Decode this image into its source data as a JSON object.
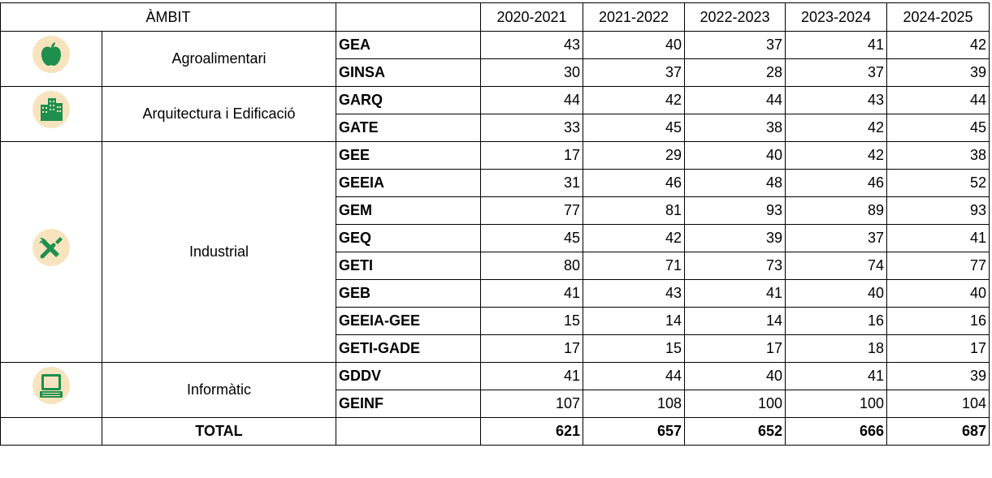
{
  "table": {
    "header": {
      "ambit": "ÀMBIT",
      "years": [
        "2020-2021",
        "2021-2022",
        "2022-2023",
        "2023-2024",
        "2024-2025"
      ]
    },
    "groups": [
      {
        "name": "Agroalimentari",
        "rows": [
          {
            "code": "GEA",
            "values": [
              43,
              40,
              37,
              41,
              42
            ]
          },
          {
            "code": "GINSA",
            "values": [
              30,
              37,
              28,
              37,
              39
            ]
          }
        ]
      },
      {
        "name": "Arquitectura i Edificació",
        "rows": [
          {
            "code": "GARQ",
            "values": [
              44,
              42,
              44,
              43,
              44
            ]
          },
          {
            "code": "GATE",
            "values": [
              33,
              45,
              38,
              42,
              45
            ]
          }
        ]
      },
      {
        "name": "Industrial",
        "rows": [
          {
            "code": "GEE",
            "values": [
              17,
              29,
              40,
              42,
              38
            ]
          },
          {
            "code": "GEEIA",
            "values": [
              31,
              46,
              48,
              46,
              52
            ]
          },
          {
            "code": "GEM",
            "values": [
              77,
              81,
              93,
              89,
              93
            ]
          },
          {
            "code": "GEQ",
            "values": [
              45,
              42,
              39,
              37,
              41
            ]
          },
          {
            "code": "GETI",
            "values": [
              80,
              71,
              73,
              74,
              77
            ]
          },
          {
            "code": "GEB",
            "values": [
              41,
              43,
              41,
              40,
              40
            ]
          },
          {
            "code": "GEEIA-GEE",
            "values": [
              15,
              14,
              14,
              16,
              16
            ]
          },
          {
            "code": "GETI-GADE",
            "values": [
              17,
              15,
              17,
              18,
              17
            ]
          }
        ]
      },
      {
        "name": "Informàtic",
        "rows": [
          {
            "code": "GDDV",
            "values": [
              41,
              44,
              40,
              41,
              39
            ]
          },
          {
            "code": "GEINF",
            "values": [
              107,
              108,
              100,
              100,
              104
            ]
          }
        ]
      }
    ],
    "total": {
      "label": "TOTAL",
      "values": [
        621,
        657,
        652,
        666,
        687
      ]
    }
  }
}
